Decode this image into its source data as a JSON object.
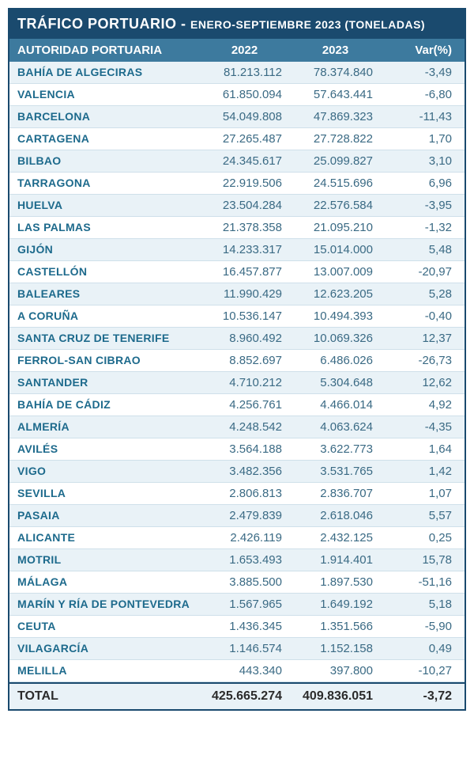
{
  "title": {
    "main": "TRÁFICO PORTUARIO - ",
    "sub": "ENERO-SEPTIEMBRE 2023 (TONELADAS)"
  },
  "columns": {
    "auth": "AUTORIDAD PORTUARIA",
    "y2022": "2022",
    "y2023": "2023",
    "var": "Var(%)"
  },
  "rows": [
    {
      "auth": "BAHÍA DE ALGECIRAS",
      "y2022": "81.213.112",
      "y2023": "78.374.840",
      "var": "-3,49"
    },
    {
      "auth": "VALENCIA",
      "y2022": "61.850.094",
      "y2023": "57.643.441",
      "var": "-6,80"
    },
    {
      "auth": "BARCELONA",
      "y2022": "54.049.808",
      "y2023": "47.869.323",
      "var": "-11,43"
    },
    {
      "auth": "CARTAGENA",
      "y2022": "27.265.487",
      "y2023": "27.728.822",
      "var": "1,70"
    },
    {
      "auth": "BILBAO",
      "y2022": "24.345.617",
      "y2023": "25.099.827",
      "var": "3,10"
    },
    {
      "auth": "TARRAGONA",
      "y2022": "22.919.506",
      "y2023": "24.515.696",
      "var": "6,96"
    },
    {
      "auth": "HUELVA",
      "y2022": "23.504.284",
      "y2023": "22.576.584",
      "var": "-3,95"
    },
    {
      "auth": "LAS PALMAS",
      "y2022": "21.378.358",
      "y2023": "21.095.210",
      "var": "-1,32"
    },
    {
      "auth": "GIJÓN",
      "y2022": "14.233.317",
      "y2023": "15.014.000",
      "var": "5,48"
    },
    {
      "auth": "CASTELLÓN",
      "y2022": "16.457.877",
      "y2023": "13.007.009",
      "var": "-20,97"
    },
    {
      "auth": "BALEARES",
      "y2022": "11.990.429",
      "y2023": "12.623.205",
      "var": "5,28"
    },
    {
      "auth": "A CORUÑA",
      "y2022": "10.536.147",
      "y2023": "10.494.393",
      "var": "-0,40"
    },
    {
      "auth": "SANTA CRUZ DE TENERIFE",
      "y2022": "8.960.492",
      "y2023": "10.069.326",
      "var": "12,37"
    },
    {
      "auth": "FERROL-SAN CIBRAO",
      "y2022": "8.852.697",
      "y2023": "6.486.026",
      "var": "-26,73"
    },
    {
      "auth": "SANTANDER",
      "y2022": "4.710.212",
      "y2023": "5.304.648",
      "var": "12,62"
    },
    {
      "auth": "BAHÍA DE CÁDIZ",
      "y2022": "4.256.761",
      "y2023": "4.466.014",
      "var": "4,92"
    },
    {
      "auth": "ALMERÍA",
      "y2022": "4.248.542",
      "y2023": "4.063.624",
      "var": "-4,35"
    },
    {
      "auth": "AVILÉS",
      "y2022": "3.564.188",
      "y2023": "3.622.773",
      "var": "1,64"
    },
    {
      "auth": "VIGO",
      "y2022": "3.482.356",
      "y2023": "3.531.765",
      "var": "1,42"
    },
    {
      "auth": "SEVILLA",
      "y2022": "2.806.813",
      "y2023": "2.836.707",
      "var": "1,07"
    },
    {
      "auth": "PASAIA",
      "y2022": "2.479.839",
      "y2023": "2.618.046",
      "var": "5,57"
    },
    {
      "auth": "ALICANTE",
      "y2022": "2.426.119",
      "y2023": "2.432.125",
      "var": "0,25"
    },
    {
      "auth": "MOTRIL",
      "y2022": "1.653.493",
      "y2023": "1.914.401",
      "var": "15,78"
    },
    {
      "auth": "MÁLAGA",
      "y2022": "3.885.500",
      "y2023": "1.897.530",
      "var": "-51,16"
    },
    {
      "auth": "MARÍN Y RÍA DE PONTEVEDRA",
      "y2022": "1.567.965",
      "y2023": "1.649.192",
      "var": "5,18"
    },
    {
      "auth": "CEUTA",
      "y2022": "1.436.345",
      "y2023": "1.351.566",
      "var": "-5,90"
    },
    {
      "auth": "VILAGARCÍA",
      "y2022": "1.146.574",
      "y2023": "1.152.158",
      "var": "0,49"
    },
    {
      "auth": "MELILLA",
      "y2022": "443.340",
      "y2023": "397.800",
      "var": "-10,27"
    }
  ],
  "total": {
    "label": "TOTAL",
    "y2022": "425.665.274",
    "y2023": "409.836.051",
    "var": "-3,72"
  },
  "style": {
    "title_bg": "#1a4a6e",
    "header_bg": "#3d7a9e",
    "row_even_bg": "#e9f2f7",
    "row_odd_bg": "#ffffff",
    "auth_text_color": "#1d6a8c",
    "value_text_color": "#3a6a84",
    "border_color": "#1a4a6e"
  }
}
